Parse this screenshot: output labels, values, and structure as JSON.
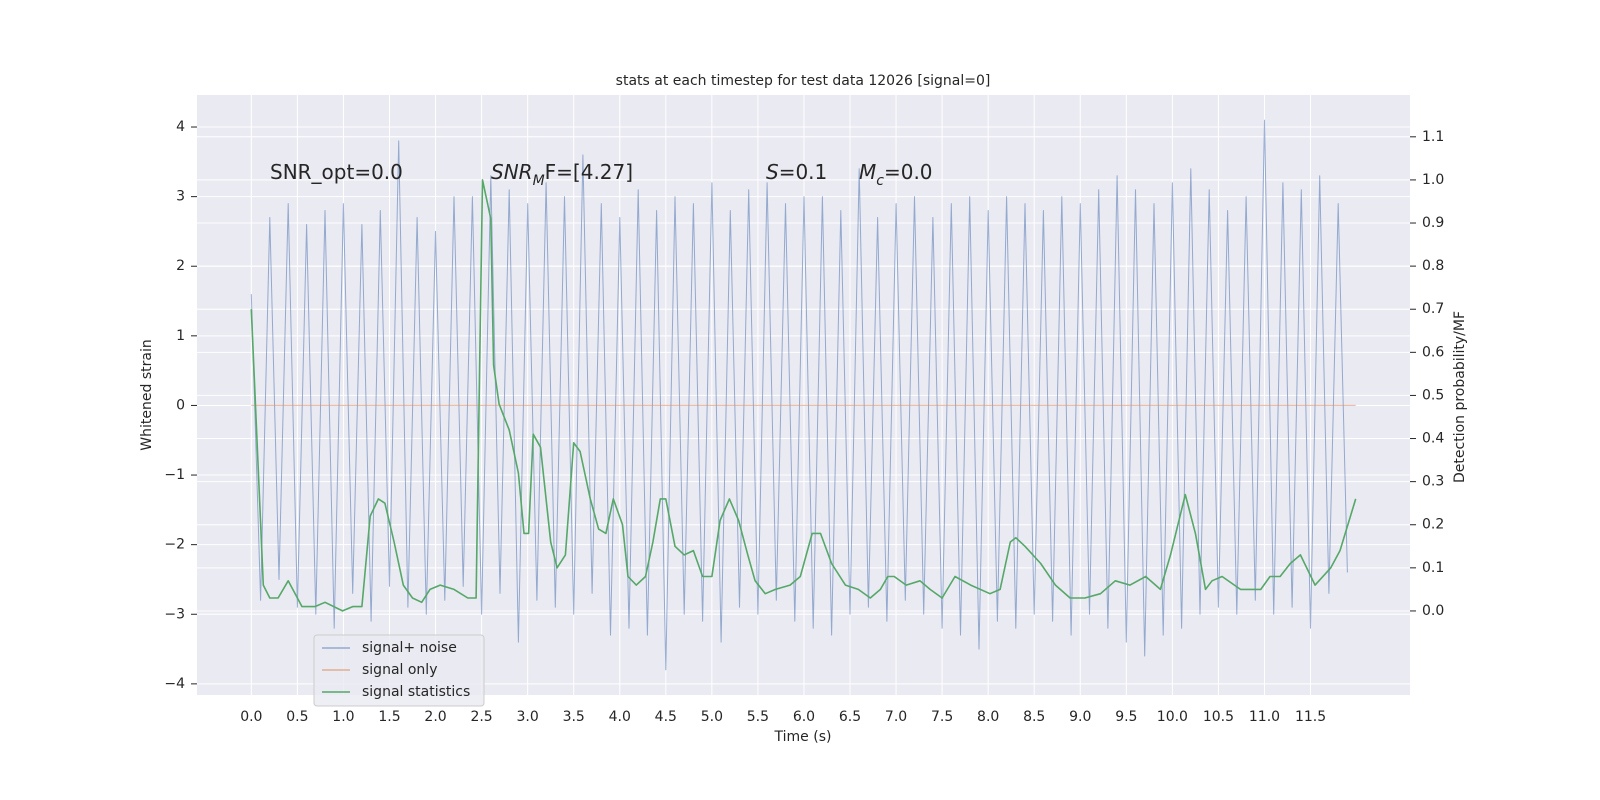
{
  "chart_data": {
    "type": "line",
    "title": "stats at each timestep for test data 12026 [signal=0]",
    "xlabel": "Time (s)",
    "ylabel": "Whitened strain",
    "y2label": "Detection probability/MF",
    "annotations": [
      {
        "parts": [
          "SNR_opt=0.0"
        ]
      },
      {
        "parts": [
          "SNR",
          "M",
          "F=[4.27]"
        ]
      },
      {
        "parts": [
          "S",
          "=0.1"
        ]
      },
      {
        "parts": [
          "M",
          "c",
          "=0.0"
        ]
      }
    ],
    "xlim": [
      -0.59,
      12.58
    ],
    "xticks": [
      {
        "value": 0,
        "label": "0.0"
      },
      {
        "value": 0.5,
        "label": "0.5"
      },
      {
        "value": 1,
        "label": "1.0"
      },
      {
        "value": 1.5,
        "label": "1.5"
      },
      {
        "value": 2,
        "label": "2.0"
      },
      {
        "value": 2.5,
        "label": "2.5"
      },
      {
        "value": 3,
        "label": "3.0"
      },
      {
        "value": 3.5,
        "label": "3.5"
      },
      {
        "value": 4,
        "label": "4.0"
      },
      {
        "value": 4.5,
        "label": "4.5"
      },
      {
        "value": 5,
        "label": "5.0"
      },
      {
        "value": 5.5,
        "label": "5.5"
      },
      {
        "value": 6,
        "label": "6.0"
      },
      {
        "value": 6.5,
        "label": "6.5"
      },
      {
        "value": 7,
        "label": "7.0"
      },
      {
        "value": 7.5,
        "label": "7.5"
      },
      {
        "value": 8,
        "label": "8.0"
      },
      {
        "value": 8.5,
        "label": "8.5"
      },
      {
        "value": 9,
        "label": "9.0"
      },
      {
        "value": 9.5,
        "label": "9.5"
      },
      {
        "value": 10,
        "label": "10.0"
      },
      {
        "value": 10.5,
        "label": "10.5"
      },
      {
        "value": 11,
        "label": "11.0"
      },
      {
        "value": 11.5,
        "label": "11.5"
      }
    ],
    "ylim": [
      -4.16,
      4.46
    ],
    "yticks": [
      {
        "value": -4,
        "label": "−4"
      },
      {
        "value": -3,
        "label": "−3"
      },
      {
        "value": -2,
        "label": "−2"
      },
      {
        "value": -1,
        "label": "−1"
      },
      0,
      1,
      2,
      3,
      4
    ],
    "y2lim": [
      -0.195,
      1.197
    ],
    "y2ticks": [
      {
        "value": 0,
        "label": "0.0"
      },
      {
        "value": 0.1,
        "label": "0.1"
      },
      {
        "value": 0.2,
        "label": "0.2"
      },
      {
        "value": 0.3,
        "label": "0.3"
      },
      {
        "value": 0.4,
        "label": "0.4"
      },
      {
        "value": 0.5,
        "label": "0.5"
      },
      {
        "value": 0.6,
        "label": "0.6"
      },
      {
        "value": 0.7,
        "label": "0.7"
      },
      {
        "value": 0.8,
        "label": "0.8"
      },
      {
        "value": 0.9,
        "label": "0.9"
      },
      {
        "value": 1.0,
        "label": "1.0"
      },
      {
        "value": 1.1,
        "label": "1.1"
      }
    ],
    "grid": true,
    "legend": "lower left",
    "series": [
      {
        "name": "signal+ noise",
        "color": "#4c72b0",
        "x": [
          0.0,
          0.1,
          0.2,
          0.3,
          0.4,
          0.5,
          0.6,
          0.7,
          0.8,
          0.9,
          1.0,
          1.1,
          1.2,
          1.3,
          1.4,
          1.5,
          1.6,
          1.7,
          1.8,
          1.9,
          2.0,
          2.1,
          2.2,
          2.3,
          2.4,
          2.5,
          2.6,
          2.7,
          2.8,
          2.9,
          3.0,
          3.1,
          3.2,
          3.3,
          3.4,
          3.5,
          3.6,
          3.7,
          3.8,
          3.9,
          4.0,
          4.1,
          4.2,
          4.3,
          4.4,
          4.5,
          4.6,
          4.7,
          4.8,
          4.9,
          5.0,
          5.1,
          5.2,
          5.3,
          5.4,
          5.5,
          5.6,
          5.7,
          5.8,
          5.9,
          6.0,
          6.1,
          6.2,
          6.3,
          6.4,
          6.5,
          6.6,
          6.7,
          6.8,
          6.9,
          7.0,
          7.1,
          7.2,
          7.3,
          7.4,
          7.5,
          7.6,
          7.7,
          7.8,
          7.9,
          8.0,
          8.1,
          8.2,
          8.3,
          8.4,
          8.5,
          8.6,
          8.7,
          8.8,
          8.9,
          9.0,
          9.1,
          9.2,
          9.3,
          9.4,
          9.5,
          9.6,
          9.7,
          9.8,
          9.9,
          10.0,
          10.1,
          10.2,
          10.3,
          10.4,
          10.5,
          10.6,
          10.7,
          10.8,
          10.9,
          11.0,
          11.1,
          11.2,
          11.3,
          11.4,
          11.5,
          11.6,
          11.7,
          11.8,
          11.9
        ],
        "values": [
          1.6,
          -2.8,
          2.7,
          -2.5,
          2.9,
          -2.9,
          2.6,
          -3.0,
          2.8,
          -3.2,
          2.9,
          -2.7,
          2.6,
          -3.1,
          2.8,
          -2.6,
          3.8,
          -2.9,
          2.7,
          -3.0,
          2.5,
          -2.8,
          3.0,
          -2.6,
          3.0,
          -3.0,
          3.3,
          -2.7,
          3.1,
          -3.4,
          2.9,
          -2.8,
          3.2,
          -2.9,
          3.0,
          -3.0,
          3.6,
          -2.7,
          2.9,
          -3.3,
          2.7,
          -3.2,
          3.1,
          -3.3,
          2.8,
          -3.8,
          3.0,
          -3.0,
          2.9,
          -3.1,
          3.2,
          -3.4,
          2.8,
          -2.9,
          3.1,
          -3.0,
          3.2,
          -2.8,
          2.9,
          -3.1,
          3.0,
          -3.2,
          3.0,
          -3.3,
          2.8,
          -3.0,
          3.4,
          -2.9,
          2.7,
          -3.1,
          2.9,
          -2.8,
          3.0,
          -3.0,
          2.7,
          -3.2,
          2.9,
          -3.3,
          3.0,
          -3.5,
          2.8,
          -3.1,
          3.0,
          -3.2,
          2.9,
          -3.0,
          2.8,
          -3.1,
          3.0,
          -3.3,
          2.9,
          -3.0,
          3.1,
          -3.2,
          3.3,
          -3.4,
          3.1,
          -3.6,
          2.9,
          -3.3,
          3.2,
          -3.2,
          3.4,
          -3.0,
          3.1,
          -2.9,
          2.8,
          -3.0,
          3.0,
          -2.8,
          4.1,
          -3.0,
          3.2,
          -2.9,
          3.1,
          -3.2,
          3.3,
          -2.7,
          2.9,
          -2.4
        ]
      },
      {
        "name": "signal only",
        "color": "#dd8452",
        "x": [
          0.0,
          11.99
        ],
        "values": [
          0,
          0
        ]
      },
      {
        "name": "signal statistics",
        "color": "#55a868",
        "axis": "y2",
        "x": [
          0.0,
          0.13,
          0.2,
          0.29,
          0.4,
          0.5,
          0.55,
          0.69,
          0.8,
          0.99,
          1.1,
          1.2,
          1.29,
          1.38,
          1.45,
          1.55,
          1.65,
          1.75,
          1.85,
          1.94,
          2.05,
          2.2,
          2.35,
          2.44,
          2.51,
          2.6,
          2.63,
          2.69,
          2.8,
          2.9,
          2.96,
          3.01,
          3.06,
          3.14,
          3.25,
          3.32,
          3.41,
          3.5,
          3.57,
          3.68,
          3.77,
          3.85,
          3.93,
          4.03,
          4.09,
          4.18,
          4.28,
          4.36,
          4.44,
          4.5,
          4.6,
          4.7,
          4.8,
          4.9,
          5.0,
          5.09,
          5.19,
          5.29,
          5.39,
          5.47,
          5.58,
          5.69,
          5.85,
          5.96,
          6.09,
          6.18,
          6.3,
          6.45,
          6.59,
          6.72,
          6.83,
          6.91,
          6.98,
          7.11,
          7.26,
          7.37,
          7.5,
          7.64,
          7.81,
          8.02,
          8.13,
          8.24,
          8.3,
          8.4,
          8.57,
          8.73,
          8.89,
          9.05,
          9.22,
          9.38,
          9.54,
          9.71,
          9.87,
          9.98,
          10.14,
          10.25,
          10.36,
          10.43,
          10.54,
          10.74,
          10.96,
          11.06,
          11.17,
          11.28,
          11.39,
          11.55,
          11.72,
          11.82,
          11.99
        ],
        "values": [
          0.7,
          0.06,
          0.03,
          0.03,
          0.07,
          0.03,
          0.01,
          0.01,
          0.02,
          0.0,
          0.01,
          0.01,
          0.22,
          0.26,
          0.25,
          0.16,
          0.06,
          0.03,
          0.02,
          0.05,
          0.06,
          0.05,
          0.03,
          0.03,
          1.0,
          0.91,
          0.57,
          0.48,
          0.42,
          0.32,
          0.18,
          0.18,
          0.41,
          0.38,
          0.16,
          0.1,
          0.13,
          0.39,
          0.37,
          0.26,
          0.19,
          0.18,
          0.26,
          0.2,
          0.08,
          0.06,
          0.08,
          0.16,
          0.26,
          0.26,
          0.15,
          0.13,
          0.14,
          0.08,
          0.08,
          0.21,
          0.26,
          0.21,
          0.13,
          0.07,
          0.04,
          0.05,
          0.06,
          0.08,
          0.18,
          0.18,
          0.11,
          0.06,
          0.05,
          0.03,
          0.05,
          0.08,
          0.08,
          0.06,
          0.07,
          0.05,
          0.03,
          0.08,
          0.06,
          0.04,
          0.05,
          0.16,
          0.17,
          0.15,
          0.11,
          0.06,
          0.03,
          0.03,
          0.04,
          0.07,
          0.06,
          0.08,
          0.05,
          0.13,
          0.27,
          0.18,
          0.05,
          0.07,
          0.08,
          0.05,
          0.05,
          0.08,
          0.08,
          0.11,
          0.13,
          0.06,
          0.1,
          0.14,
          0.26
        ]
      }
    ]
  }
}
